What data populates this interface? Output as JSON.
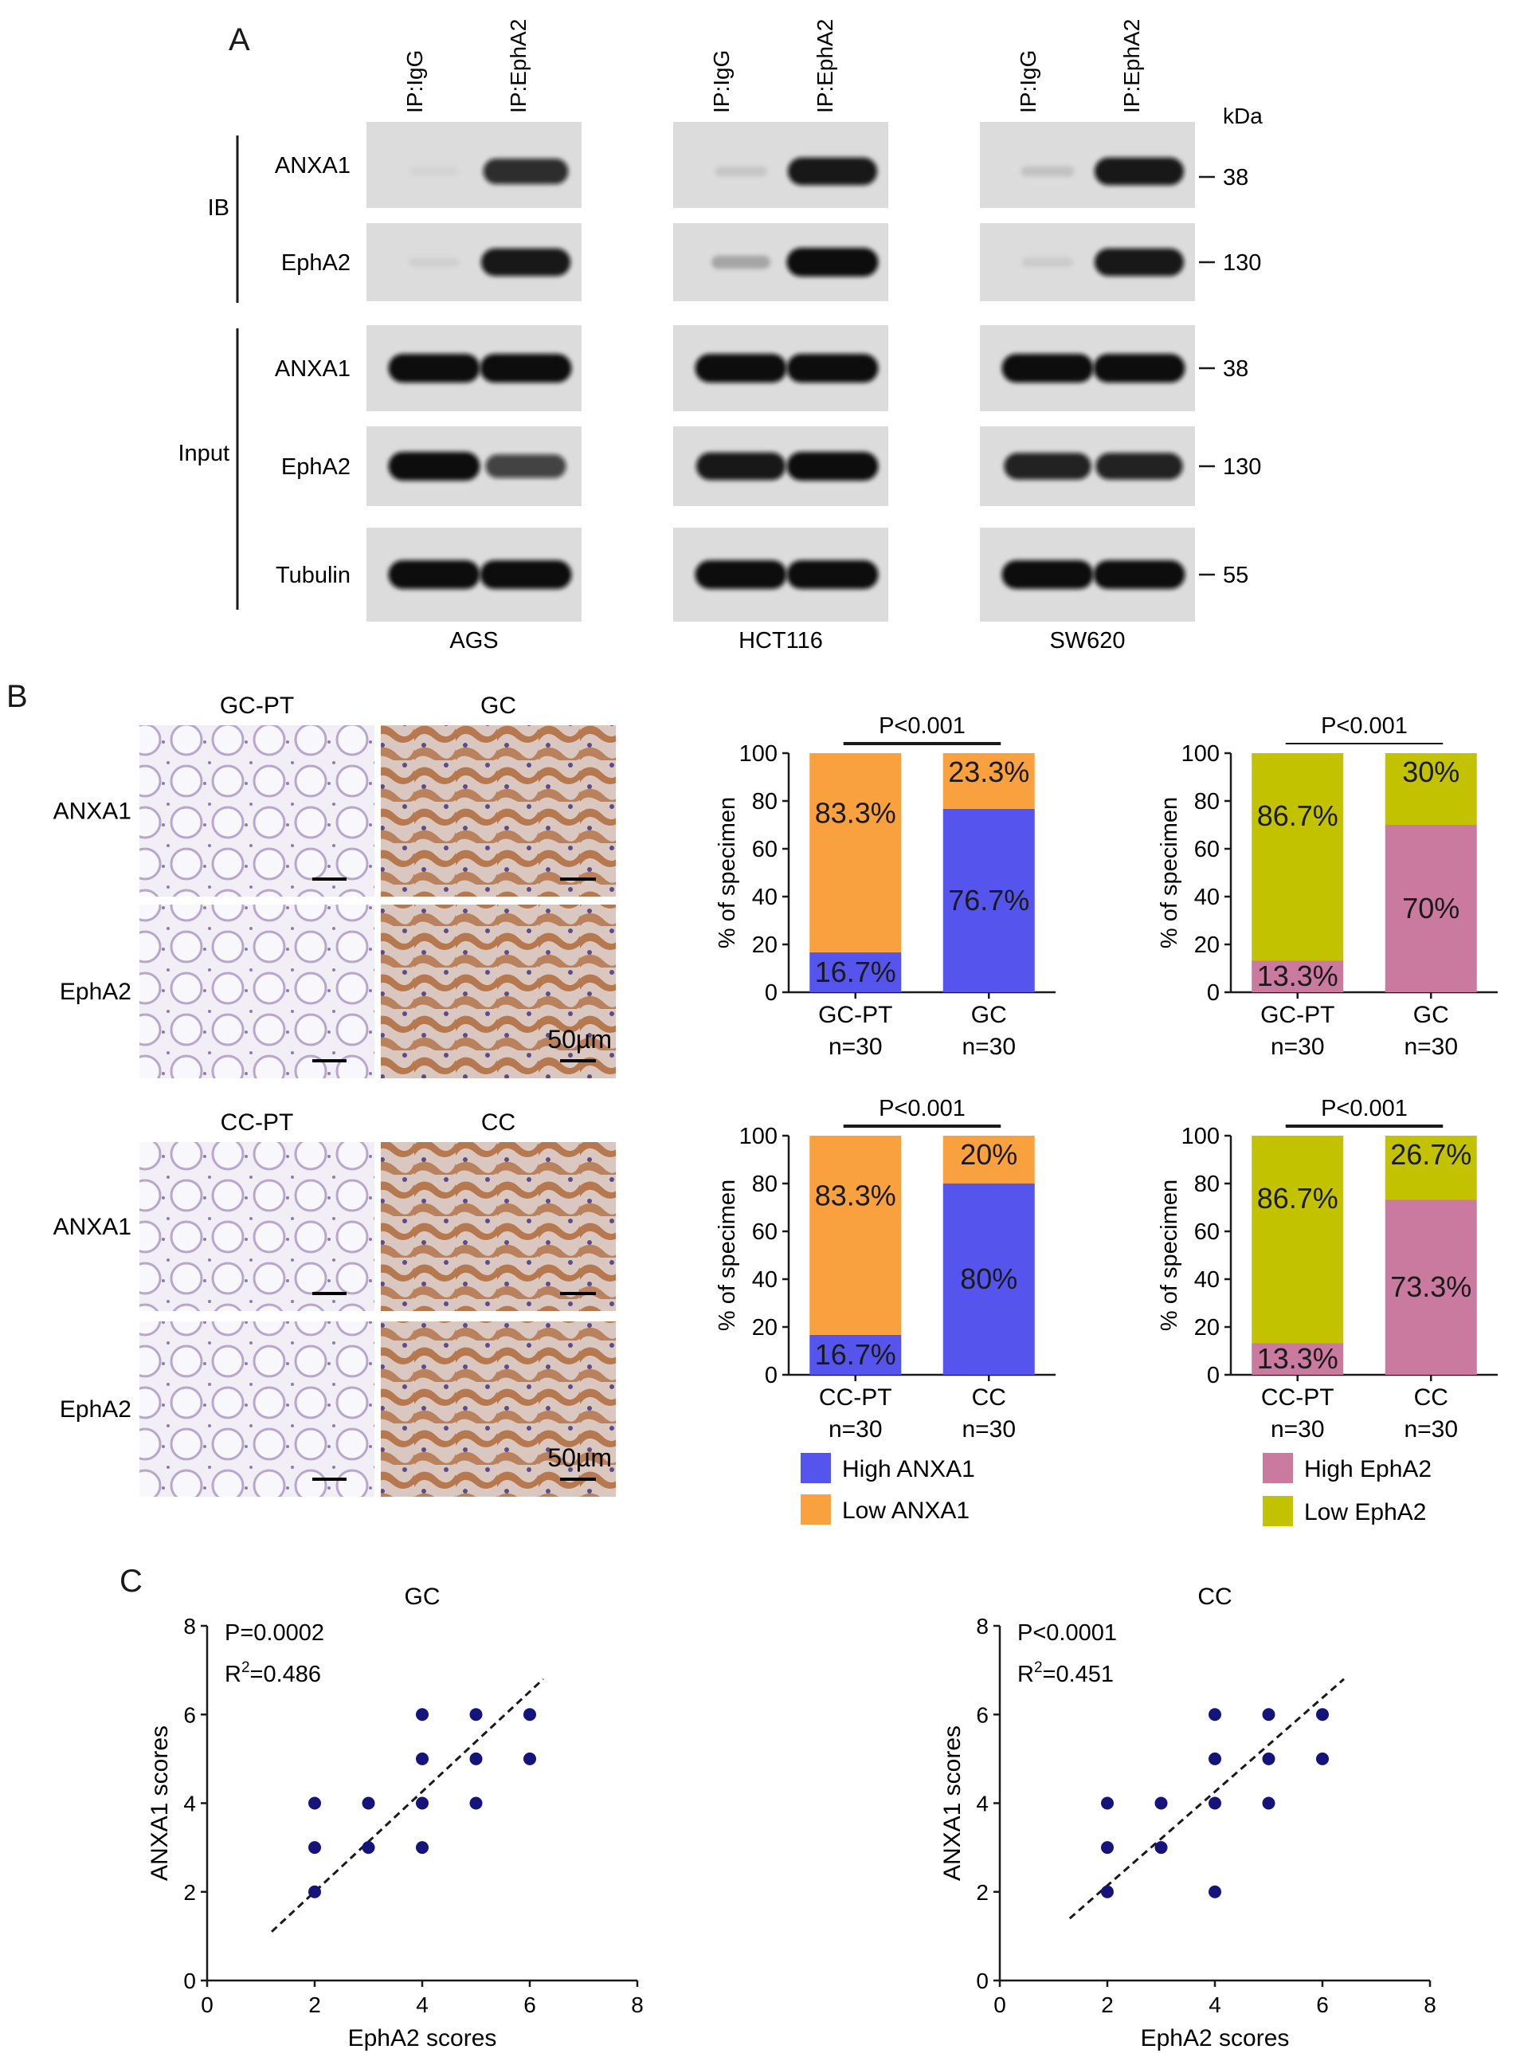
{
  "panels": {
    "a": {
      "letter": "A",
      "lane_labels": [
        "IP:IgG",
        "IP:EphA2"
      ],
      "kda_label": "kDa",
      "group_labels": {
        "ib": "IB",
        "input": "Input"
      },
      "row_labels": [
        "ANXA1",
        "EphA2",
        "ANXA1",
        "EphA2",
        "Tubulin"
      ],
      "mw_markers": [
        "38",
        "130",
        "38",
        "130",
        "55"
      ],
      "cell_lines": [
        "AGS",
        "HCT116",
        "SW620"
      ],
      "band_intensity": [
        [
          [
            0.04,
            0.85
          ],
          [
            0.1,
            0.95
          ],
          [
            0.12,
            0.95
          ]
        ],
        [
          [
            0.06,
            0.95
          ],
          [
            0.25,
            1.0
          ],
          [
            0.08,
            0.95
          ]
        ],
        [
          [
            1.0,
            1.0
          ],
          [
            1.0,
            1.0
          ],
          [
            1.0,
            1.0
          ]
        ],
        [
          [
            1.0,
            0.75
          ],
          [
            0.95,
            1.0
          ],
          [
            0.9,
            0.9
          ]
        ],
        [
          [
            1.0,
            1.0
          ],
          [
            1.0,
            1.0
          ],
          [
            1.0,
            1.0
          ]
        ]
      ]
    },
    "b": {
      "letter": "B",
      "ihc": [
        {
          "normal_label": "GC-PT",
          "tumor_label": "GC",
          "row_labels": [
            "ANXA1",
            "EphA2"
          ],
          "scale_label": "50µm"
        },
        {
          "normal_label": "CC-PT",
          "tumor_label": "CC",
          "row_labels": [
            "ANXA1",
            "EphA2"
          ],
          "scale_label": "50µm"
        }
      ],
      "legend_anxa1": [
        "High ANXA1",
        "Low ANXA1"
      ],
      "legend_epha2": [
        "High EphA2",
        "Low EphA2"
      ]
    },
    "c": {
      "letter": "C"
    }
  },
  "colors": {
    "high_anxa1": "#5555ee",
    "low_anxa1": "#f9a03f",
    "high_epha2": "#c97a9e",
    "low_epha2": "#c2c200",
    "scatter_point": "#14147a",
    "he_stain": "#f1eef5",
    "dab_stain": "#b06a3a"
  },
  "chart_data": [
    {
      "type": "bar",
      "stacked": true,
      "title": "P<0.001",
      "ylabel": "% of specimen",
      "ylim": [
        0,
        100
      ],
      "yticks": [
        0,
        20,
        40,
        60,
        80,
        100
      ],
      "categories": [
        "GC-PT\nn=30",
        "GC\nn=30"
      ],
      "series": [
        {
          "name": "High ANXA1",
          "values": [
            16.7,
            76.7
          ],
          "labels": [
            "16.7%",
            "76.7%"
          ]
        },
        {
          "name": "Low ANXA1",
          "values": [
            83.3,
            23.3
          ],
          "labels": [
            "83.3%",
            "23.3%"
          ]
        }
      ]
    },
    {
      "type": "bar",
      "stacked": true,
      "title": "P<0.001",
      "ylabel": "% of specimen",
      "ylim": [
        0,
        100
      ],
      "yticks": [
        0,
        20,
        40,
        60,
        80,
        100
      ],
      "categories": [
        "GC-PT\nn=30",
        "GC\nn=30"
      ],
      "series": [
        {
          "name": "High EphA2",
          "values": [
            13.3,
            70
          ],
          "labels": [
            "13.3%",
            "70%"
          ]
        },
        {
          "name": "Low EphA2",
          "values": [
            86.7,
            30
          ],
          "labels": [
            "86.7%",
            "30%"
          ]
        }
      ]
    },
    {
      "type": "bar",
      "stacked": true,
      "title": "P<0.001",
      "ylabel": "% of specimen",
      "ylim": [
        0,
        100
      ],
      "yticks": [
        0,
        20,
        40,
        60,
        80,
        100
      ],
      "categories": [
        "CC-PT\nn=30",
        "CC\nn=30"
      ],
      "series": [
        {
          "name": "High ANXA1",
          "values": [
            16.7,
            80
          ],
          "labels": [
            "16.7%",
            "80%"
          ]
        },
        {
          "name": "Low ANXA1",
          "values": [
            83.3,
            20
          ],
          "labels": [
            "83.3%",
            "20%"
          ]
        }
      ]
    },
    {
      "type": "bar",
      "stacked": true,
      "title": "P<0.001",
      "ylabel": "% of specimen",
      "ylim": [
        0,
        100
      ],
      "yticks": [
        0,
        20,
        40,
        60,
        80,
        100
      ],
      "categories": [
        "CC-PT\nn=30",
        "CC\nn=30"
      ],
      "series": [
        {
          "name": "High EphA2",
          "values": [
            13.3,
            73.3
          ],
          "labels": [
            "13.3%",
            "73.3%"
          ]
        },
        {
          "name": "Low EphA2",
          "values": [
            86.7,
            26.7
          ],
          "labels": [
            "86.7%",
            "26.7%"
          ]
        }
      ]
    },
    {
      "type": "scatter",
      "title": "GC",
      "xlabel": "EphA2 scores",
      "ylabel": "ANXA1 scores",
      "xlim": [
        0,
        8
      ],
      "ylim": [
        0,
        8
      ],
      "xticks": [
        0,
        2,
        4,
        6,
        8
      ],
      "yticks": [
        0,
        2,
        4,
        6,
        8
      ],
      "annotations": [
        "P=0.0002",
        "R2=0.486"
      ],
      "points": [
        [
          2,
          4
        ],
        [
          2,
          3
        ],
        [
          2,
          2
        ],
        [
          3,
          4
        ],
        [
          3,
          3
        ],
        [
          4,
          6
        ],
        [
          4,
          5
        ],
        [
          4,
          4
        ],
        [
          4,
          3
        ],
        [
          5,
          6
        ],
        [
          5,
          5
        ],
        [
          5,
          4
        ],
        [
          6,
          6
        ],
        [
          6,
          5
        ]
      ],
      "trendline": [
        [
          1.2,
          1.1
        ],
        [
          6.25,
          6.8
        ]
      ]
    },
    {
      "type": "scatter",
      "title": "CC",
      "xlabel": "EphA2 scores",
      "ylabel": "ANXA1 scores",
      "xlim": [
        0,
        8
      ],
      "ylim": [
        0,
        8
      ],
      "xticks": [
        0,
        2,
        4,
        6,
        8
      ],
      "yticks": [
        0,
        2,
        4,
        6,
        8
      ],
      "annotations": [
        "P<0.0001",
        "R2=0.451"
      ],
      "points": [
        [
          2,
          4
        ],
        [
          2,
          3
        ],
        [
          2,
          2
        ],
        [
          3,
          4
        ],
        [
          3,
          3
        ],
        [
          4,
          6
        ],
        [
          4,
          5
        ],
        [
          4,
          4
        ],
        [
          4,
          2
        ],
        [
          5,
          6
        ],
        [
          5,
          5
        ],
        [
          5,
          4
        ],
        [
          6,
          6
        ],
        [
          6,
          5
        ]
      ],
      "trendline": [
        [
          1.3,
          1.4
        ],
        [
          6.4,
          6.8
        ]
      ]
    }
  ]
}
